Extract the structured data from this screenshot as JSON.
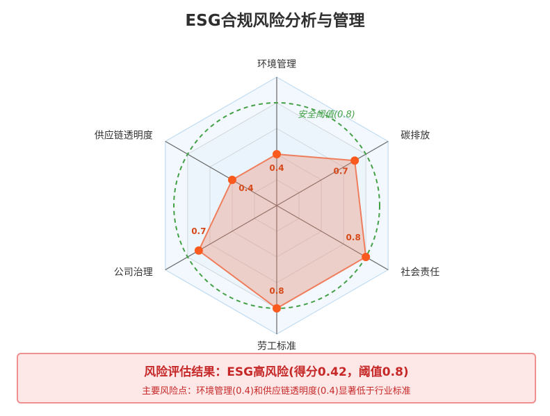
{
  "title": "ESG合规风险分析与管理",
  "chart_data": {
    "type": "radar",
    "categories": [
      "环境管理",
      "碳排放",
      "社会责任",
      "劳工标准",
      "公司治理",
      "供应链透明度"
    ],
    "values": [
      0.4,
      0.7,
      0.8,
      0.8,
      0.7,
      0.4
    ],
    "range": [
      0,
      1
    ],
    "grid_levels": [
      0.2,
      0.4,
      0.6,
      0.8,
      1.0
    ],
    "threshold": {
      "value": 0.8,
      "label": "安全阈值(0.8)"
    },
    "colors": {
      "fill": "#f08a6e",
      "line": "#ef7d5c",
      "point": "#fb5a1e",
      "value_label": "#d64a1a",
      "threshold": "#43a047",
      "grid_fill": "#e8f2fc",
      "grid_line": "#b7d7f1"
    }
  },
  "result": {
    "title": "风险评估结果：ESG高风险(得分0.42，阈值0.8)",
    "detail": "主要风险点：环境管理(0.4)和供应链透明度(0.4)显著低于行业标准"
  }
}
